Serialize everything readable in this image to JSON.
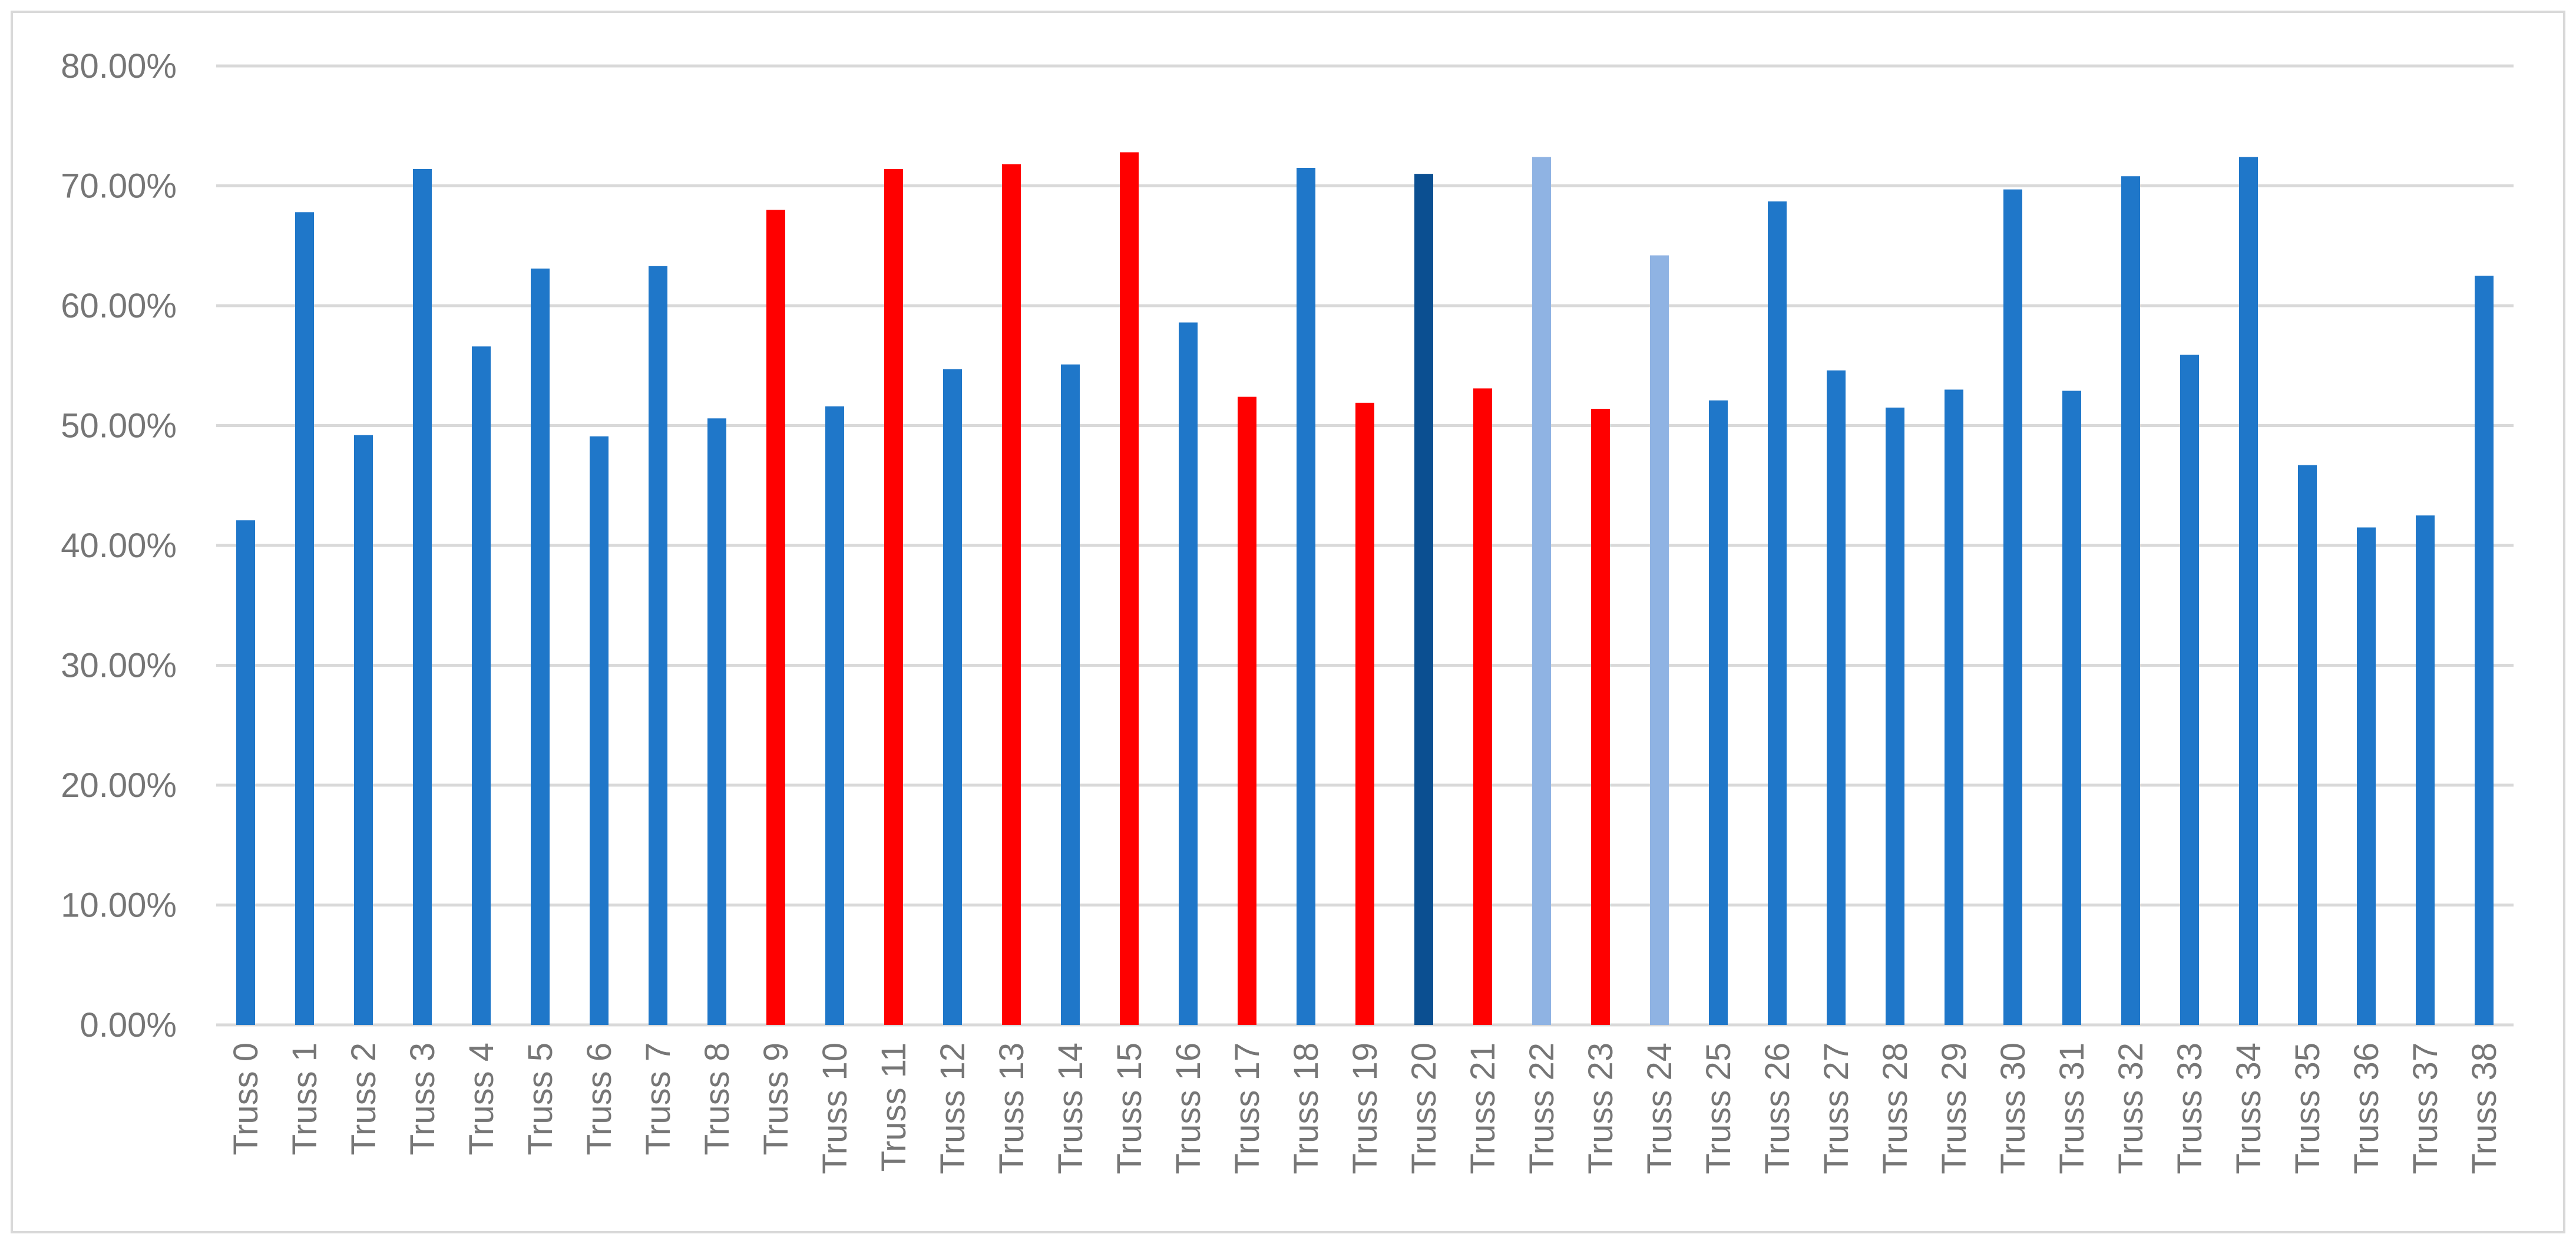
{
  "chart_data": {
    "type": "bar",
    "title": "",
    "xlabel": "",
    "ylabel": "",
    "ylim": [
      0,
      80
    ],
    "y_tick_step": 10,
    "y_tick_format": "percent-2dp",
    "grid": true,
    "legend": "none",
    "categories": [
      "Truss 0",
      "Truss 1",
      "Truss 2",
      "Truss 3",
      "Truss 4",
      "Truss 5",
      "Truss 6",
      "Truss 7",
      "Truss 8",
      "Truss 9",
      "Truss 10",
      "Truss 11",
      "Truss 12",
      "Truss 13",
      "Truss 14",
      "Truss 15",
      "Truss 16",
      "Truss 17",
      "Truss 18",
      "Truss 19",
      "Truss 20",
      "Truss 21",
      "Truss 22",
      "Truss 23",
      "Truss 24",
      "Truss 25",
      "Truss 26",
      "Truss 27",
      "Truss 28",
      "Truss 29",
      "Truss 30",
      "Truss 31",
      "Truss 32",
      "Truss 33",
      "Truss 34",
      "Truss 35",
      "Truss 36",
      "Truss 37",
      "Truss 38"
    ],
    "values": [
      42.1,
      67.8,
      49.2,
      71.4,
      56.6,
      63.1,
      49.1,
      63.3,
      50.6,
      68.0,
      51.6,
      71.4,
      54.7,
      71.8,
      55.1,
      72.8,
      58.6,
      52.4,
      71.5,
      51.9,
      71.0,
      53.1,
      72.4,
      51.4,
      64.2,
      52.1,
      68.7,
      54.6,
      51.5,
      53.0,
      69.7,
      52.9,
      70.8,
      55.9,
      72.4,
      46.7,
      41.5,
      42.5,
      62.5
    ],
    "bar_colors": [
      "#1f77c9",
      "#1f77c9",
      "#1f77c9",
      "#1f77c9",
      "#1f77c9",
      "#1f77c9",
      "#1f77c9",
      "#1f77c9",
      "#1f77c9",
      "#ff0000",
      "#1f77c9",
      "#ff0000",
      "#1f77c9",
      "#ff0000",
      "#1f77c9",
      "#ff0000",
      "#1f77c9",
      "#ff0000",
      "#1f77c9",
      "#ff0000",
      "#0b4f91",
      "#ff0000",
      "#8fb3e3",
      "#ff0000",
      "#8fb3e3",
      "#1f77c9",
      "#1f77c9",
      "#1f77c9",
      "#1f77c9",
      "#1f77c9",
      "#1f77c9",
      "#1f77c9",
      "#1f77c9",
      "#1f77c9",
      "#1f77c9",
      "#1f77c9",
      "#1f77c9",
      "#1f77c9",
      "#1f77c9"
    ],
    "colors": {
      "default_bar": "#1f77c9",
      "highlight_red": "#ff0000",
      "dark_blue": "#0b4f91",
      "light_blue": "#8fb3e3",
      "gridline": "#d9d9d9",
      "tick_text": "#767676"
    }
  }
}
